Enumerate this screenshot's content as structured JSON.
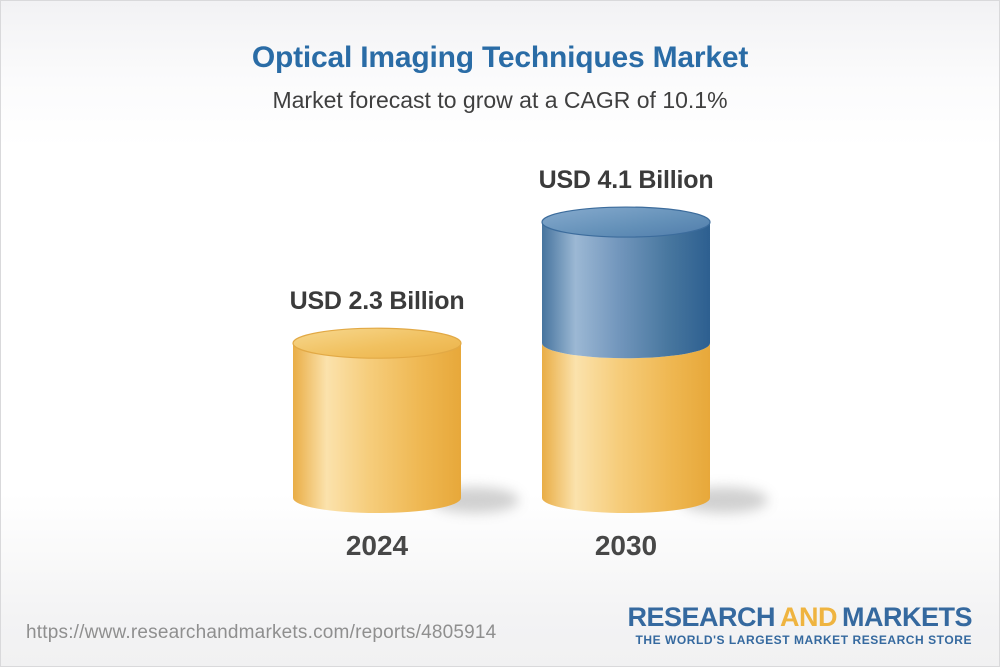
{
  "header": {
    "title": "Optical Imaging Techniques Market",
    "subtitle": "Market forecast to grow at a CAGR of 10.1%"
  },
  "chart_data": {
    "type": "bar",
    "variant": "3d-cylinder-stacked",
    "title": "Optical Imaging Techniques Market",
    "subtitle": "Market forecast to grow at a CAGR of 10.1%",
    "cagr_percent": 10.1,
    "unit": "USD Billion",
    "categories": [
      "2024",
      "2030"
    ],
    "values": [
      2.3,
      4.1
    ],
    "axes": "none",
    "legend": "none",
    "bars": [
      {
        "year": "2024",
        "label": "USD 2.3 Billion",
        "total": 2.3,
        "segments": [
          {
            "value": 2.3,
            "color": "gold"
          }
        ]
      },
      {
        "year": "2030",
        "label": "USD 4.1 Billion",
        "total": 4.1,
        "segments": [
          {
            "value": 2.3,
            "color": "gold"
          },
          {
            "value": 1.8,
            "color": "blue"
          }
        ]
      }
    ]
  },
  "palette": {
    "gold": "#f0b44a",
    "blue": "#4678a8",
    "title_blue": "#2a6ca6",
    "text_dark": "#3b3b3b",
    "url_gray": "#8f8f8f",
    "logo_blue": "#35699f",
    "logo_gold": "#efb440"
  },
  "footer": {
    "url": "https://www.researchandmarkets.com/reports/4805914",
    "logo": {
      "word1": "RESEARCH",
      "word2": "AND",
      "word3": "MARKETS",
      "tagline": "THE WORLD'S LARGEST MARKET RESEARCH STORE"
    }
  }
}
